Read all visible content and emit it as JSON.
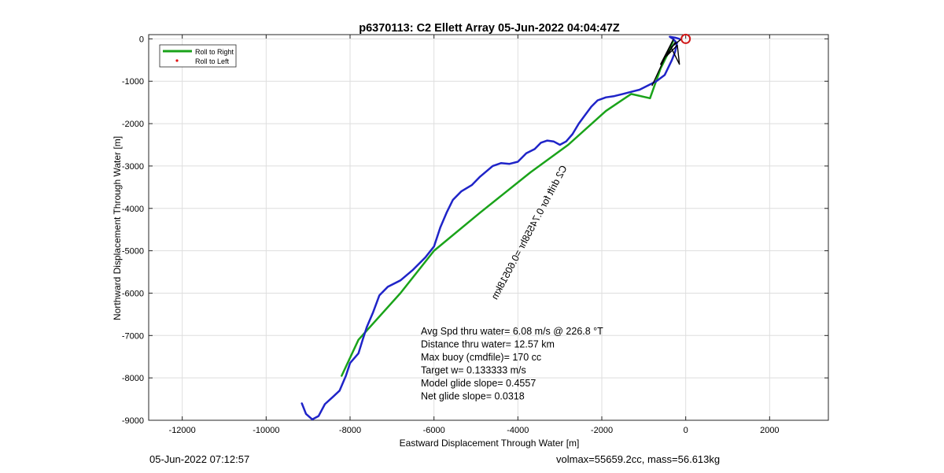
{
  "chart_data": {
    "type": "line",
    "title": "p6370113: C2 Ellett Array 05-Jun-2022 04:04:47Z",
    "xlabel": "Eastward Displacement Through Water [m]",
    "ylabel": "Northward Displacement Through Water [m]",
    "xlim": [
      -12800,
      3400
    ],
    "ylim": [
      -9000,
      100
    ],
    "xticks": [
      -12000,
      -10000,
      -8000,
      -6000,
      -4000,
      -2000,
      0,
      2000
    ],
    "yticks": [
      0,
      -1000,
      -2000,
      -3000,
      -4000,
      -5000,
      -6000,
      -7000,
      -8000,
      -9000
    ],
    "grid": true,
    "legend_position": "top-left",
    "legend": [
      "Roll to Right",
      "Roll to Left"
    ],
    "series": [
      {
        "name": "Roll to Right",
        "color": "#1aa31a",
        "x": [
          -8200,
          -7800,
          -6800,
          -6000,
          -4900,
          -3700,
          -2800,
          -1900,
          -1300,
          -850,
          -600,
          -400,
          -300
        ],
        "y": [
          -7950,
          -7100,
          -6000,
          -5000,
          -4100,
          -3150,
          -2500,
          -1700,
          -1300,
          -1400,
          -700,
          -300,
          -50
        ]
      },
      {
        "name": "",
        "color": "#1f24c8",
        "x": [
          -9150,
          -9050,
          -8900,
          -8750,
          -8600,
          -8400,
          -8250,
          -8100,
          -8000,
          -7800,
          -7700,
          -7600,
          -7450,
          -7300,
          -7100,
          -6800,
          -6500,
          -6200,
          -6000,
          -5850,
          -5700,
          -5550,
          -5350,
          -5100,
          -4900,
          -4600,
          -4400,
          -4200,
          -4000,
          -3800,
          -3600,
          -3450,
          -3300,
          -3150,
          -3000,
          -2850,
          -2700,
          -2550,
          -2400,
          -2250,
          -2100,
          -1900,
          -1700,
          -1500,
          -1300,
          -1100,
          -900,
          -700,
          -500,
          -330,
          -250,
          -210,
          -300,
          -380,
          -250,
          -150
        ],
        "y": [
          -8600,
          -8850,
          -8980,
          -8900,
          -8620,
          -8440,
          -8300,
          -7950,
          -7650,
          -7420,
          -7100,
          -6800,
          -6450,
          -6050,
          -5850,
          -5700,
          -5450,
          -5150,
          -4900,
          -4450,
          -4100,
          -3800,
          -3600,
          -3450,
          -3250,
          -3000,
          -2930,
          -2950,
          -2900,
          -2700,
          -2600,
          -2450,
          -2400,
          -2420,
          -2500,
          -2420,
          -2250,
          -2000,
          -1800,
          -1600,
          -1450,
          -1380,
          -1350,
          -1300,
          -1250,
          -1200,
          -1100,
          -1000,
          -850,
          -500,
          -300,
          -100,
          0,
          50,
          30,
          0
        ]
      },
      {
        "name": "",
        "color": "#000000",
        "x": [
          -800,
          -300,
          -600,
          -250,
          -450,
          -200,
          -150,
          -350,
          -100
        ],
        "y": [
          -1100,
          -20,
          -600,
          -80,
          -400,
          -150,
          -600,
          -200,
          0
        ]
      }
    ],
    "end_marker": {
      "x": 0,
      "y": 0,
      "color": "#d01818"
    },
    "annotations": [
      {
        "text": "Avg Spd thru water=  6.08 m/s @ 226.8 °T"
      },
      {
        "text": "Distance thru water= 12.57 km"
      },
      {
        "text": "Max buoy (cmdfile)= 170 cc"
      },
      {
        "text": "Target w= 0.133333 m/s"
      },
      {
        "text": "Model glide slope= 0.4557"
      },
      {
        "text": "Net glide slope= 0.0318"
      }
    ],
    "rotated_label": "C2 drift for 0.74558hr =0.60518km"
  },
  "footer": {
    "left": "05-Jun-2022 07:12:57",
    "right": "volmax=55659.2cc, mass=56.613kg"
  }
}
